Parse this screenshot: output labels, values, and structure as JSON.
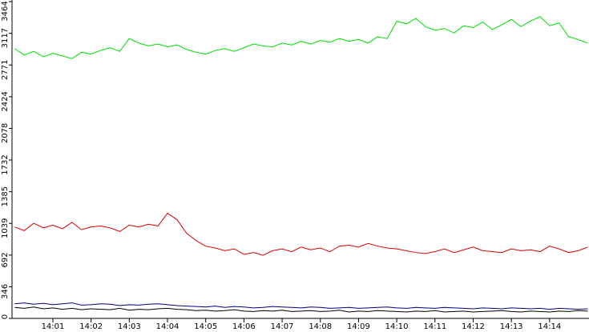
{
  "chart_data": {
    "type": "line",
    "categories": [
      null,
      null,
      null,
      null,
      "14:01",
      null,
      null,
      null,
      "14:02",
      null,
      null,
      null,
      "14:03",
      null,
      null,
      null,
      "14:04",
      null,
      null,
      null,
      "14:05",
      null,
      null,
      null,
      "14:06",
      null,
      null,
      null,
      "14:07",
      null,
      null,
      null,
      "14:08",
      null,
      null,
      null,
      "14:09",
      null,
      null,
      null,
      "14:10",
      null,
      null,
      null,
      "14:11",
      null,
      null,
      null,
      "14:12",
      null,
      null,
      null,
      "14:13",
      null,
      null,
      null,
      "14:14",
      null,
      null,
      null,
      null
    ],
    "series": [
      {
        "color": "#00dd00",
        "values": [
          2950,
          2880,
          2920,
          2860,
          2900,
          2870,
          2840,
          2910,
          2890,
          2930,
          2960,
          2920,
          3060,
          3010,
          2980,
          3000,
          2970,
          2990,
          2940,
          2910,
          2890,
          2930,
          2950,
          2920,
          2960,
          3000,
          2980,
          2970,
          3010,
          2990,
          3030,
          3000,
          3040,
          3020,
          3060,
          3030,
          3050,
          3010,
          3080,
          3060,
          3250,
          3220,
          3280,
          3190,
          3150,
          3170,
          3120,
          3200,
          3180,
          3240,
          3160,
          3210,
          3270,
          3190,
          3250,
          3300,
          3200,
          3230,
          3080,
          3050,
          3010
        ]
      },
      {
        "color": "#dd0000",
        "values": [
          1000,
          960,
          1040,
          990,
          1020,
          980,
          1050,
          970,
          1000,
          1010,
          990,
          950,
          1020,
          1000,
          1030,
          1010,
          1150,
          1080,
          930,
          850,
          790,
          770,
          740,
          760,
          700,
          720,
          690,
          740,
          760,
          730,
          780,
          750,
          770,
          730,
          790,
          800,
          780,
          820,
          790,
          770,
          760,
          740,
          720,
          710,
          730,
          760,
          720,
          750,
          780,
          740,
          730,
          720,
          760,
          740,
          750,
          730,
          790,
          760,
          720,
          740,
          780
        ]
      },
      {
        "color": "#000080",
        "values": [
          160,
          170,
          155,
          165,
          150,
          160,
          170,
          145,
          150,
          160,
          155,
          140,
          150,
          145,
          155,
          160,
          150,
          140,
          135,
          130,
          125,
          135,
          120,
          130,
          125,
          115,
          120,
          130,
          125,
          120,
          115,
          125,
          120,
          110,
          115,
          120,
          110,
          115,
          120,
          125,
          115,
          110,
          120,
          115,
          110,
          120,
          115,
          110,
          105,
          115,
          110,
          105,
          115,
          110,
          105,
          110,
          100,
          110,
          105,
          100,
          105
        ]
      },
      {
        "color": "#000000",
        "values": [
          120,
          110,
          125,
          105,
          115,
          100,
          110,
          95,
          105,
          100,
          95,
          110,
          90,
          100,
          95,
          105,
          110,
          100,
          95,
          85,
          90,
          80,
          85,
          95,
          80,
          75,
          85,
          80,
          90,
          75,
          80,
          85,
          75,
          80,
          90,
          70,
          80,
          75,
          85,
          80,
          75,
          70,
          80,
          75,
          85,
          70,
          75,
          80,
          70,
          75,
          80,
          85,
          75,
          70,
          80,
          75,
          70,
          80,
          75,
          85,
          80
        ]
      }
    ],
    "ylim": [
      0,
      3464
    ],
    "yticks": [
      0,
      346,
      692,
      1039,
      1385,
      1732,
      2078,
      2424,
      2771,
      3117,
      3464
    ],
    "grid": false
  }
}
